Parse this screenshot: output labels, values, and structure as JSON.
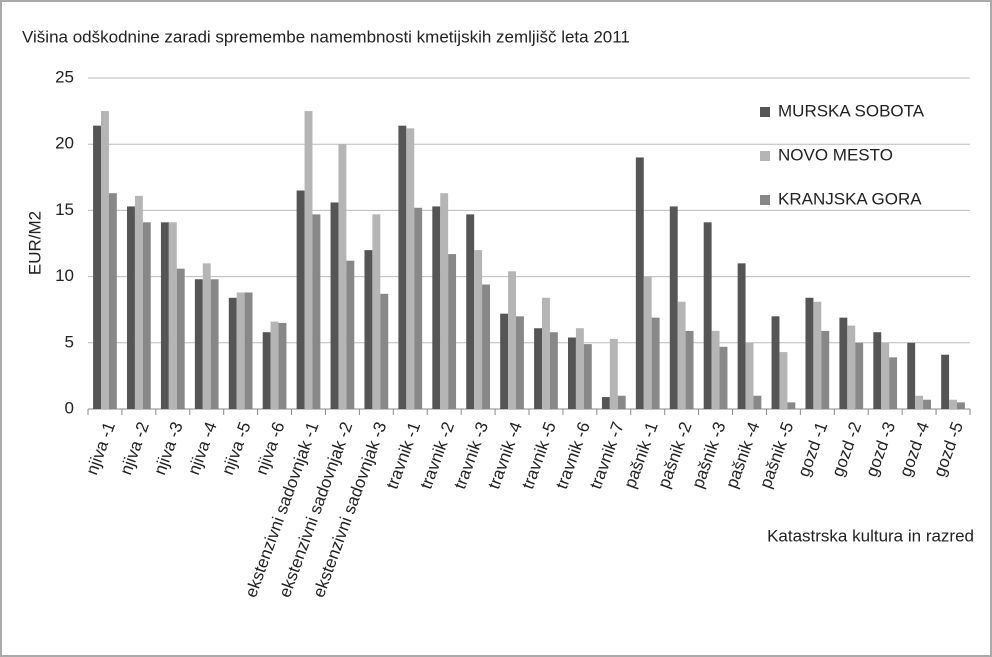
{
  "chart_data": {
    "type": "bar",
    "title": "Višina odškodnine zaradi spremembe namembnosti kmetijskih zemljišč leta 2011",
    "y_label": "EUR/M2",
    "x_label": "Katastrska kultura in razred",
    "categories": [
      "njiva -1",
      "njiva -2",
      "njiva -3",
      "njiva -4",
      "njiva -5",
      "njiva -6",
      "ekstenzivni sadovnjak -1",
      "ekstenzivni sadovnjak -2",
      "ekstenzivni sadovnjak -3",
      "travnik -1",
      "travnik -2",
      "travnik -3",
      "travnik -4",
      "travnik -5",
      "travnik -6",
      "travnik -7",
      "pašnik -1",
      "pašnik -2",
      "pašnik -3",
      "pašnik -4",
      "pašnik -5",
      "gozd -1",
      "gozd -2",
      "gozd -3",
      "gozd -4",
      "gozd -5"
    ],
    "series": [
      {
        "name": "MURSKA SOBOTA",
        "color": "#555555",
        "values": [
          21.4,
          15.3,
          14.1,
          9.8,
          8.4,
          5.8,
          16.5,
          15.6,
          12.0,
          21.4,
          15.3,
          14.7,
          7.2,
          6.1,
          5.4,
          0.9,
          19.0,
          15.3,
          14.1,
          11.0,
          7.0,
          8.4,
          6.9,
          5.8,
          5.0,
          4.1
        ]
      },
      {
        "name": "NOVO MESTO",
        "color": "#b5b5b5",
        "values": [
          22.5,
          16.1,
          14.1,
          11.0,
          8.8,
          6.6,
          22.5,
          20.0,
          14.7,
          21.2,
          16.3,
          12.0,
          10.4,
          8.4,
          6.1,
          5.3,
          10.0,
          8.1,
          5.9,
          5.0,
          4.3,
          8.1,
          6.3,
          5.0,
          1.0,
          0.7
        ]
      },
      {
        "name": "KRANJSKA GORA",
        "color": "#888888",
        "values": [
          16.3,
          14.1,
          10.6,
          9.8,
          8.8,
          6.5,
          14.7,
          11.2,
          8.7,
          15.2,
          11.7,
          9.4,
          7.0,
          5.8,
          4.9,
          1.0,
          6.9,
          5.9,
          4.7,
          1.0,
          0.5,
          5.9,
          5.0,
          3.9,
          0.7,
          0.5
        ]
      }
    ],
    "ylim": [
      0,
      25
    ],
    "yticks": [
      0,
      5,
      10,
      15,
      20,
      25
    ],
    "grid": true,
    "legend": "top-right"
  }
}
